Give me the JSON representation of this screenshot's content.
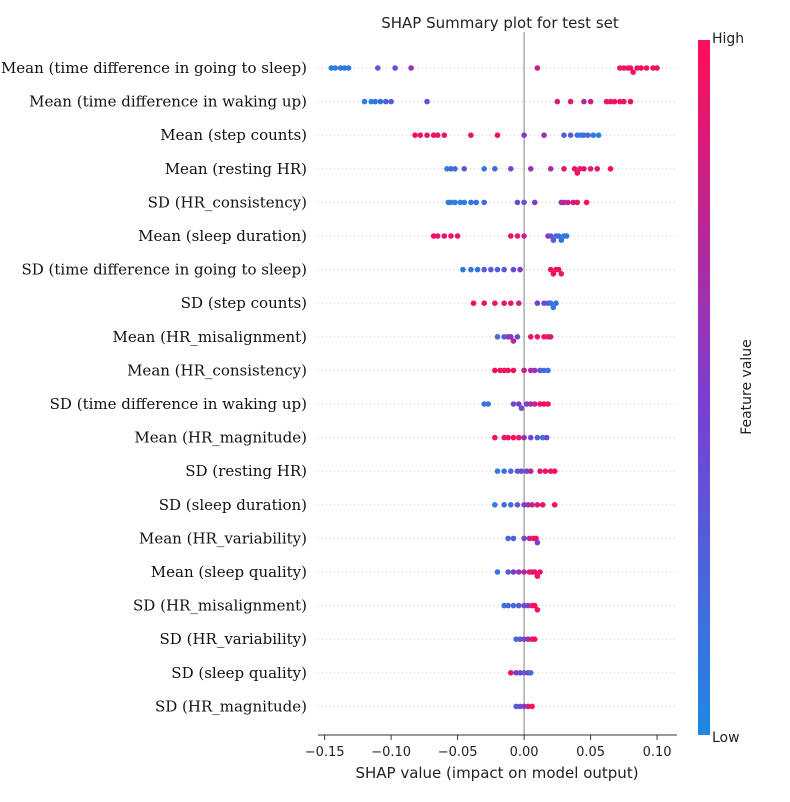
{
  "chart_data": {
    "type": "scatter",
    "subtype": "shap-beeswarm",
    "title": "SHAP Summary plot for test set",
    "xlabel": "SHAP value (impact on model output)",
    "xlim": [
      -0.155,
      0.115
    ],
    "xticks": [
      -0.15,
      -0.1,
      -0.05,
      0.0,
      0.05,
      0.1
    ],
    "xtick_labels": [
      "−0.15",
      "−0.10",
      "−0.05",
      "0.00",
      "0.05",
      "0.10"
    ],
    "colorbar": {
      "label": "Feature value",
      "high_label": "High",
      "low_label": "Low",
      "low_color": "#1e88e5",
      "high_color": "#ff0d57"
    },
    "features": [
      {
        "name": "Mean (time difference in going to sleep)",
        "points": [
          [
            -0.145,
            0.05
          ],
          [
            -0.142,
            0.05
          ],
          [
            -0.138,
            0.1
          ],
          [
            -0.135,
            0.08
          ],
          [
            -0.132,
            0.1
          ],
          [
            -0.11,
            0.3
          ],
          [
            -0.097,
            0.4
          ],
          [
            -0.085,
            0.6
          ],
          [
            0.01,
            0.8
          ],
          [
            0.072,
            0.9
          ],
          [
            0.075,
            0.95
          ],
          [
            0.078,
            0.9
          ],
          [
            0.08,
            1.0
          ],
          [
            0.082,
            0.95
          ],
          [
            0.085,
            0.9
          ],
          [
            0.088,
            1.0
          ],
          [
            0.092,
            0.95
          ],
          [
            0.097,
            1.0
          ],
          [
            0.1,
            0.9
          ]
        ]
      },
      {
        "name": "Mean (time difference in waking up)",
        "points": [
          [
            -0.12,
            0.05
          ],
          [
            -0.115,
            0.05
          ],
          [
            -0.112,
            0.1
          ],
          [
            -0.108,
            0.15
          ],
          [
            -0.104,
            0.25
          ],
          [
            -0.1,
            0.3
          ],
          [
            -0.073,
            0.3
          ],
          [
            0.025,
            0.85
          ],
          [
            0.035,
            0.9
          ],
          [
            0.045,
            0.7
          ],
          [
            0.05,
            0.8
          ],
          [
            0.062,
            0.9
          ],
          [
            0.065,
            0.95
          ],
          [
            0.068,
            1.0
          ],
          [
            0.072,
            0.9
          ],
          [
            0.075,
            0.95
          ],
          [
            0.08,
            1.0
          ]
        ]
      },
      {
        "name": "Mean (step counts)",
        "points": [
          [
            -0.082,
            1.0
          ],
          [
            -0.078,
            0.95
          ],
          [
            -0.073,
            0.9
          ],
          [
            -0.068,
            0.95
          ],
          [
            -0.065,
            0.9
          ],
          [
            -0.06,
            0.95
          ],
          [
            -0.04,
            0.9
          ],
          [
            -0.02,
            0.95
          ],
          [
            0.0,
            0.5
          ],
          [
            0.015,
            0.6
          ],
          [
            0.035,
            0.3
          ],
          [
            0.04,
            0.1
          ],
          [
            0.043,
            0.15
          ],
          [
            0.045,
            0.1
          ],
          [
            0.048,
            0.2
          ],
          [
            0.052,
            0.1
          ],
          [
            0.056,
            0.05
          ],
          [
            0.03,
            0.25
          ]
        ]
      },
      {
        "name": "Mean (resting HR)",
        "points": [
          [
            -0.058,
            0.1
          ],
          [
            -0.055,
            0.15
          ],
          [
            -0.052,
            0.2
          ],
          [
            -0.045,
            0.3
          ],
          [
            -0.03,
            0.1
          ],
          [
            -0.022,
            0.2
          ],
          [
            -0.01,
            0.4
          ],
          [
            0.005,
            0.6
          ],
          [
            0.02,
            0.7
          ],
          [
            0.03,
            0.9
          ],
          [
            0.038,
            0.95
          ],
          [
            0.04,
            1.0
          ],
          [
            0.042,
            0.9
          ],
          [
            0.045,
            0.95
          ],
          [
            0.05,
            0.85
          ],
          [
            0.055,
            0.9
          ],
          [
            0.065,
            1.0
          ]
        ]
      },
      {
        "name": "SD (HR_consistency)",
        "points": [
          [
            -0.057,
            0.1
          ],
          [
            -0.055,
            0.05
          ],
          [
            -0.052,
            0.1
          ],
          [
            -0.048,
            0.05
          ],
          [
            -0.045,
            0.1
          ],
          [
            -0.04,
            0.1
          ],
          [
            -0.036,
            0.15
          ],
          [
            -0.03,
            0.2
          ],
          [
            -0.005,
            0.4
          ],
          [
            0.0,
            0.3
          ],
          [
            0.008,
            0.5
          ],
          [
            0.028,
            0.6
          ],
          [
            0.03,
            0.7
          ],
          [
            0.033,
            0.8
          ],
          [
            0.037,
            0.85
          ],
          [
            0.04,
            0.9
          ],
          [
            0.047,
            1.0
          ]
        ]
      },
      {
        "name": "Mean (sleep duration)",
        "points": [
          [
            -0.068,
            1.0
          ],
          [
            -0.065,
            0.95
          ],
          [
            -0.06,
            0.9
          ],
          [
            -0.055,
            0.95
          ],
          [
            -0.05,
            0.9
          ],
          [
            -0.01,
            0.95
          ],
          [
            -0.005,
            0.9
          ],
          [
            0.0,
            0.8
          ],
          [
            0.018,
            0.6
          ],
          [
            0.02,
            0.4
          ],
          [
            0.022,
            0.3
          ],
          [
            0.024,
            0.2
          ],
          [
            0.026,
            0.15
          ],
          [
            0.028,
            0.1
          ],
          [
            0.03,
            0.05
          ],
          [
            0.032,
            0.1
          ]
        ]
      },
      {
        "name": "SD (time difference in going to sleep)",
        "points": [
          [
            -0.046,
            0.1
          ],
          [
            -0.04,
            0.1
          ],
          [
            -0.035,
            0.15
          ],
          [
            -0.03,
            0.3
          ],
          [
            -0.025,
            0.3
          ],
          [
            -0.02,
            0.3
          ],
          [
            -0.015,
            0.3
          ],
          [
            -0.008,
            0.4
          ],
          [
            -0.003,
            0.5
          ],
          [
            0.02,
            0.9
          ],
          [
            0.022,
            1.0
          ],
          [
            0.024,
            0.95
          ],
          [
            0.026,
            1.0
          ],
          [
            0.028,
            0.9
          ]
        ]
      },
      {
        "name": "SD (step counts)",
        "points": [
          [
            -0.038,
            1.0
          ],
          [
            -0.03,
            0.95
          ],
          [
            -0.022,
            0.9
          ],
          [
            -0.015,
            0.9
          ],
          [
            -0.01,
            0.95
          ],
          [
            -0.004,
            0.8
          ],
          [
            0.01,
            0.5
          ],
          [
            0.015,
            0.4
          ],
          [
            0.018,
            0.3
          ],
          [
            0.02,
            0.2
          ],
          [
            0.022,
            0.1
          ],
          [
            0.024,
            0.15
          ]
        ]
      },
      {
        "name": "Mean (HR_misalignment)",
        "points": [
          [
            -0.02,
            0.2
          ],
          [
            -0.015,
            0.3
          ],
          [
            -0.012,
            0.5
          ],
          [
            -0.01,
            0.6
          ],
          [
            -0.008,
            0.7
          ],
          [
            -0.005,
            0.4
          ],
          [
            0.005,
            0.9
          ],
          [
            0.01,
            0.95
          ],
          [
            0.015,
            1.0
          ],
          [
            0.018,
            0.9
          ],
          [
            0.02,
            0.85
          ]
        ]
      },
      {
        "name": "Mean (HR_consistency)",
        "points": [
          [
            -0.022,
            1.0
          ],
          [
            -0.018,
            0.95
          ],
          [
            -0.015,
            0.9
          ],
          [
            -0.012,
            1.0
          ],
          [
            -0.008,
            0.95
          ],
          [
            0.0,
            0.8
          ],
          [
            0.005,
            0.7
          ],
          [
            0.008,
            0.6
          ],
          [
            0.012,
            0.3
          ],
          [
            0.015,
            0.2
          ],
          [
            0.018,
            0.15
          ]
        ]
      },
      {
        "name": "SD (time difference in waking up)",
        "points": [
          [
            -0.03,
            0.1
          ],
          [
            -0.027,
            0.1
          ],
          [
            -0.008,
            0.4
          ],
          [
            -0.004,
            0.5
          ],
          [
            -0.002,
            0.4
          ],
          [
            0.002,
            0.5
          ],
          [
            0.005,
            0.6
          ],
          [
            0.008,
            0.8
          ],
          [
            0.012,
            0.9
          ],
          [
            0.015,
            1.0
          ],
          [
            0.018,
            0.95
          ]
        ]
      },
      {
        "name": "Mean (HR_magnitude)",
        "points": [
          [
            -0.022,
            1.0
          ],
          [
            -0.015,
            0.9
          ],
          [
            -0.012,
            0.95
          ],
          [
            -0.008,
            1.0
          ],
          [
            -0.004,
            0.9
          ],
          [
            0.0,
            0.6
          ],
          [
            0.005,
            0.4
          ],
          [
            0.01,
            0.3
          ],
          [
            0.014,
            0.2
          ],
          [
            0.017,
            0.4
          ]
        ]
      },
      {
        "name": "SD (resting HR)",
        "points": [
          [
            -0.02,
            0.1
          ],
          [
            -0.015,
            0.15
          ],
          [
            -0.01,
            0.2
          ],
          [
            -0.005,
            0.3
          ],
          [
            -0.002,
            0.4
          ],
          [
            0.002,
            0.5
          ],
          [
            0.005,
            0.7
          ],
          [
            0.012,
            0.9
          ],
          [
            0.016,
            0.95
          ],
          [
            0.02,
            0.9
          ],
          [
            0.023,
            1.0
          ]
        ]
      },
      {
        "name": "SD (sleep duration)",
        "points": [
          [
            -0.022,
            0.1
          ],
          [
            -0.015,
            0.2
          ],
          [
            -0.01,
            0.15
          ],
          [
            -0.005,
            0.3
          ],
          [
            0.0,
            0.5
          ],
          [
            0.003,
            0.6
          ],
          [
            0.006,
            0.8
          ],
          [
            0.01,
            0.9
          ],
          [
            0.014,
            0.95
          ],
          [
            0.023,
            1.0
          ]
        ]
      },
      {
        "name": "Mean (HR_variability)",
        "points": [
          [
            -0.012,
            0.2
          ],
          [
            -0.008,
            0.3
          ],
          [
            0.0,
            0.4
          ],
          [
            0.004,
            0.8
          ],
          [
            0.007,
            0.9
          ],
          [
            0.009,
            1.0
          ],
          [
            0.01,
            0.5
          ]
        ]
      },
      {
        "name": "Mean (sleep quality)",
        "points": [
          [
            -0.02,
            0.1
          ],
          [
            -0.012,
            0.3
          ],
          [
            -0.008,
            0.5
          ],
          [
            -0.004,
            0.6
          ],
          [
            0.0,
            0.7
          ],
          [
            0.004,
            0.85
          ],
          [
            0.006,
            0.9
          ],
          [
            0.008,
            1.0
          ],
          [
            0.01,
            0.95
          ],
          [
            0.012,
            0.9
          ]
        ]
      },
      {
        "name": "SD (HR_misalignment)",
        "points": [
          [
            -0.015,
            0.1
          ],
          [
            -0.012,
            0.2
          ],
          [
            -0.008,
            0.15
          ],
          [
            -0.004,
            0.3
          ],
          [
            0.0,
            0.4
          ],
          [
            0.003,
            0.5
          ],
          [
            0.006,
            0.9
          ],
          [
            0.008,
            1.0
          ],
          [
            0.01,
            0.95
          ]
        ]
      },
      {
        "name": "SD (HR_variability)",
        "points": [
          [
            -0.006,
            0.2
          ],
          [
            -0.003,
            0.3
          ],
          [
            0.0,
            0.4
          ],
          [
            0.003,
            0.6
          ],
          [
            0.006,
            0.9
          ],
          [
            0.008,
            1.0
          ]
        ]
      },
      {
        "name": "SD (sleep quality)",
        "points": [
          [
            -0.01,
            0.9
          ],
          [
            -0.006,
            0.5
          ],
          [
            -0.003,
            0.4
          ],
          [
            0.0,
            0.3
          ],
          [
            0.003,
            0.5
          ],
          [
            0.005,
            0.2
          ]
        ]
      },
      {
        "name": "SD (HR_magnitude)",
        "points": [
          [
            -0.006,
            0.3
          ],
          [
            -0.003,
            0.4
          ],
          [
            0.0,
            0.5
          ],
          [
            0.003,
            0.8
          ],
          [
            0.006,
            1.0
          ]
        ]
      }
    ]
  }
}
